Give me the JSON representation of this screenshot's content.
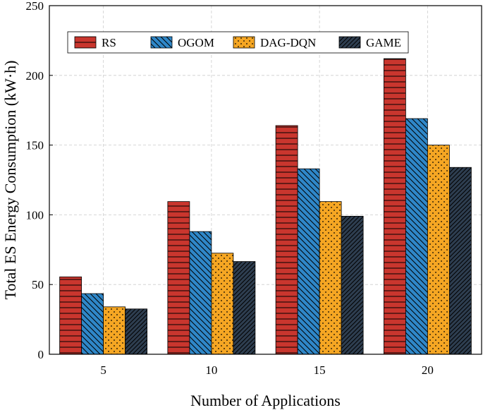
{
  "chart_data": {
    "type": "bar",
    "title": "",
    "xlabel": "Number of Applications",
    "ylabel": "Total ES Energy Consumption (kW·h)",
    "categories": [
      "5",
      "10",
      "15",
      "20"
    ],
    "ylim": [
      0,
      250
    ],
    "yticks": [
      0,
      50,
      100,
      150,
      200,
      250
    ],
    "grid": true,
    "legend_position": "top",
    "series": [
      {
        "name": "RS",
        "values": [
          55.5,
          109.5,
          164,
          212
        ],
        "color": "#c9362e",
        "pattern": "horizontal-lines"
      },
      {
        "name": "OGOM",
        "values": [
          43.5,
          88,
          133,
          169
        ],
        "color": "#2f87c8",
        "pattern": "diagonal-lines"
      },
      {
        "name": "DAG-DQN",
        "values": [
          34,
          72.5,
          109.5,
          150
        ],
        "color": "#f5a623",
        "pattern": "dots"
      },
      {
        "name": "GAME",
        "values": [
          32.5,
          66.5,
          99,
          134
        ],
        "color": "#2e3e50",
        "pattern": "dense-diagonal-lines"
      }
    ]
  }
}
